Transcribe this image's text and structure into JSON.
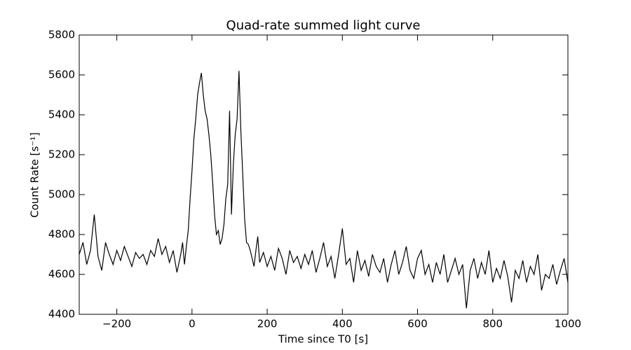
{
  "chart_data": {
    "type": "line",
    "title": "Quad-rate summed light curve",
    "xlabel": "Time since T0 [s]",
    "ylabel": "Count Rate [s⁻¹]",
    "x": [
      -300,
      -290,
      -280,
      -270,
      -260,
      -250,
      -240,
      -230,
      -220,
      -210,
      -200,
      -190,
      -180,
      -170,
      -160,
      -150,
      -140,
      -130,
      -120,
      -110,
      -100,
      -90,
      -80,
      -70,
      -60,
      -50,
      -40,
      -30,
      -25,
      -20,
      -15,
      -10,
      -5,
      0,
      5,
      10,
      15,
      20,
      25,
      30,
      35,
      40,
      45,
      50,
      55,
      60,
      65,
      70,
      75,
      80,
      85,
      90,
      95,
      100,
      105,
      110,
      115,
      120,
      125,
      130,
      135,
      140,
      145,
      150,
      155,
      160,
      165,
      170,
      175,
      180,
      190,
      200,
      210,
      220,
      230,
      240,
      250,
      260,
      270,
      280,
      290,
      300,
      310,
      320,
      330,
      340,
      350,
      360,
      370,
      380,
      390,
      400,
      410,
      420,
      430,
      440,
      450,
      460,
      470,
      480,
      490,
      500,
      510,
      520,
      530,
      540,
      550,
      560,
      570,
      580,
      590,
      600,
      610,
      620,
      630,
      640,
      650,
      660,
      670,
      680,
      690,
      700,
      710,
      720,
      730,
      740,
      750,
      760,
      770,
      780,
      790,
      800,
      810,
      820,
      830,
      840,
      850,
      860,
      870,
      880,
      890,
      900,
      910,
      920,
      930,
      940,
      950,
      960,
      970,
      980,
      990,
      1000
    ],
    "values": [
      4700,
      4760,
      4650,
      4720,
      4900,
      4690,
      4620,
      4760,
      4700,
      4650,
      4720,
      4670,
      4740,
      4690,
      4640,
      4710,
      4680,
      4700,
      4650,
      4720,
      4690,
      4780,
      4700,
      4740,
      4660,
      4720,
      4610,
      4700,
      4760,
      4650,
      4740,
      4820,
      4980,
      5120,
      5280,
      5380,
      5500,
      5560,
      5610,
      5500,
      5420,
      5380,
      5300,
      5200,
      5060,
      4900,
      4800,
      4820,
      4750,
      4780,
      4850,
      4980,
      5050,
      5420,
      4900,
      5150,
      5300,
      5380,
      5620,
      5320,
      5100,
      4880,
      4760,
      4750,
      4720,
      4680,
      4640,
      4720,
      4790,
      4660,
      4710,
      4640,
      4690,
      4620,
      4730,
      4680,
      4600,
      4720,
      4660,
      4690,
      4630,
      4700,
      4650,
      4720,
      4610,
      4680,
      4760,
      4640,
      4690,
      4580,
      4700,
      4830,
      4650,
      4680,
      4560,
      4720,
      4620,
      4670,
      4590,
      4700,
      4640,
      4610,
      4680,
      4560,
      4650,
      4720,
      4600,
      4660,
      4740,
      4620,
      4580,
      4680,
      4720,
      4600,
      4650,
      4560,
      4660,
      4600,
      4700,
      4560,
      4620,
      4680,
      4600,
      4650,
      4430,
      4620,
      4680,
      4580,
      4660,
      4600,
      4720,
      4560,
      4630,
      4580,
      4670,
      4590,
      4460,
      4620,
      4580,
      4670,
      4560,
      4640,
      4600,
      4700,
      4520,
      4600,
      4580,
      4650,
      4550,
      4620,
      4680,
      4560
    ],
    "color": "#000000",
    "xlim": [
      -300,
      1000
    ],
    "xticks": [
      {
        "value": -200,
        "label": "−200"
      },
      0,
      200,
      400,
      600,
      800,
      1000
    ],
    "ylim": [
      4400,
      5800
    ],
    "yticks": [
      4400,
      4600,
      4800,
      5000,
      5200,
      5400,
      5600,
      5800
    ],
    "grid": false
  }
}
